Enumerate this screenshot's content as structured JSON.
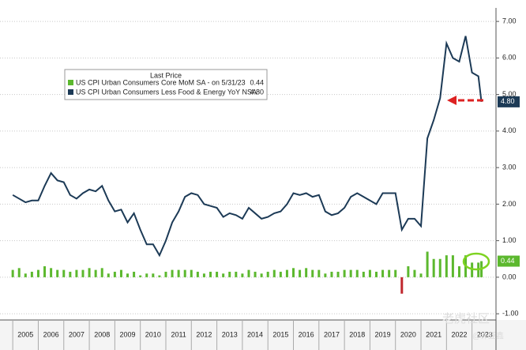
{
  "chart_data": {
    "type": "line",
    "x": [
      2005.0,
      2005.25,
      2005.5,
      2005.75,
      2006.0,
      2006.25,
      2006.5,
      2006.75,
      2007.0,
      2007.25,
      2007.5,
      2007.75,
      2008.0,
      2008.25,
      2008.5,
      2008.75,
      2009.0,
      2009.25,
      2009.5,
      2009.75,
      2010.0,
      2010.25,
      2010.5,
      2010.75,
      2011.0,
      2011.25,
      2011.5,
      2011.75,
      2012.0,
      2012.25,
      2012.5,
      2012.75,
      2013.0,
      2013.25,
      2013.5,
      2013.75,
      2014.0,
      2014.25,
      2014.5,
      2014.75,
      2015.0,
      2015.25,
      2015.5,
      2015.75,
      2016.0,
      2016.25,
      2016.5,
      2016.75,
      2017.0,
      2017.25,
      2017.5,
      2017.75,
      2018.0,
      2018.25,
      2018.5,
      2018.75,
      2019.0,
      2019.25,
      2019.5,
      2019.75,
      2020.0,
      2020.25,
      2020.5,
      2020.75,
      2021.0,
      2021.25,
      2021.5,
      2021.75,
      2022.0,
      2022.25,
      2022.5,
      2022.75,
      2023.0,
      2023.25,
      2023.37
    ],
    "series": [
      {
        "name": "US CPI Urban Consumers Core MoM SA - on 5/31/23",
        "last_label": "0.44",
        "color": "#5cb82e",
        "negative_color": "#c0272d",
        "kind": "bar",
        "values": [
          0.2,
          0.25,
          0.1,
          0.15,
          0.2,
          0.3,
          0.25,
          0.2,
          0.2,
          0.15,
          0.2,
          0.2,
          0.25,
          0.2,
          0.25,
          0.1,
          0.15,
          0.2,
          0.1,
          0.15,
          0.05,
          0.1,
          0.1,
          0.05,
          0.15,
          0.2,
          0.2,
          0.2,
          0.2,
          0.15,
          0.1,
          0.15,
          0.15,
          0.1,
          0.15,
          0.15,
          0.1,
          0.2,
          0.15,
          0.1,
          0.15,
          0.2,
          0.15,
          0.2,
          0.25,
          0.2,
          0.25,
          0.2,
          0.2,
          0.1,
          0.15,
          0.15,
          0.2,
          0.2,
          0.2,
          0.15,
          0.2,
          0.15,
          0.2,
          0.2,
          0.2,
          -0.45,
          0.3,
          0.2,
          0.1,
          0.7,
          0.5,
          0.5,
          0.6,
          0.6,
          0.3,
          0.6,
          0.4,
          0.4,
          0.44
        ]
      },
      {
        "name": "US CPI Urban Consumers Less Food & Energy YoY NSA",
        "last_label": "4.80",
        "color": "#1c3a56",
        "kind": "line",
        "values": [
          2.25,
          2.15,
          2.05,
          2.1,
          2.1,
          2.5,
          2.85,
          2.65,
          2.6,
          2.25,
          2.15,
          2.3,
          2.4,
          2.35,
          2.5,
          2.1,
          1.8,
          1.85,
          1.5,
          1.75,
          1.3,
          0.9,
          0.9,
          0.6,
          1.0,
          1.5,
          1.8,
          2.2,
          2.3,
          2.25,
          2.0,
          1.95,
          1.9,
          1.65,
          1.75,
          1.7,
          1.6,
          1.9,
          1.75,
          1.6,
          1.65,
          1.75,
          1.8,
          2.0,
          2.3,
          2.25,
          2.3,
          2.2,
          2.25,
          1.8,
          1.7,
          1.75,
          1.9,
          2.2,
          2.3,
          2.2,
          2.1,
          2.0,
          2.3,
          2.3,
          2.3,
          1.3,
          1.6,
          1.6,
          1.4,
          3.8,
          4.3,
          4.9,
          6.4,
          6.0,
          5.9,
          6.6,
          5.6,
          5.5,
          4.8
        ]
      }
    ],
    "legend_title": "Last Price",
    "xlim": [
      2004.5,
      2023.94
    ],
    "xticks": [
      {
        "value": 2005.5,
        "label": "2005"
      },
      {
        "value": 2006.5,
        "label": "2006"
      },
      {
        "value": 2007.5,
        "label": "2007"
      },
      {
        "value": 2008.5,
        "label": "2008"
      },
      {
        "value": 2009.5,
        "label": "2009"
      },
      {
        "value": 2010.5,
        "label": "2010"
      },
      {
        "value": 2011.5,
        "label": "2011"
      },
      {
        "value": 2012.5,
        "label": "2012"
      },
      {
        "value": 2013.5,
        "label": "2013"
      },
      {
        "value": 2014.5,
        "label": "2014"
      },
      {
        "value": 2015.5,
        "label": "2015"
      },
      {
        "value": 2016.5,
        "label": "2016"
      },
      {
        "value": 2017.5,
        "label": "2017"
      },
      {
        "value": 2018.5,
        "label": "2018"
      },
      {
        "value": 2019.5,
        "label": "2019"
      },
      {
        "value": 2020.5,
        "label": "2020"
      },
      {
        "value": 2021.5,
        "label": "2021"
      },
      {
        "value": 2022.5,
        "label": "2022"
      },
      {
        "value": 2023.5,
        "label": "2023"
      }
    ],
    "ylim": [
      -1.17,
      7.37
    ],
    "yticks": [
      {
        "value": 7,
        "label": "7.00"
      },
      {
        "value": 6,
        "label": "6.00"
      },
      {
        "value": 5,
        "label": "5.00"
      },
      {
        "value": 4,
        "label": "4.00"
      },
      {
        "value": 3,
        "label": "3.00"
      },
      {
        "value": 2,
        "label": "2.00"
      },
      {
        "value": 1,
        "label": "1.00"
      },
      {
        "value": 0,
        "label": "0.00"
      },
      {
        "value": -1,
        "label": "-1.00"
      }
    ],
    "grid": true,
    "watermark": "老虎社区",
    "watermark_author": "@许亚鑫"
  }
}
